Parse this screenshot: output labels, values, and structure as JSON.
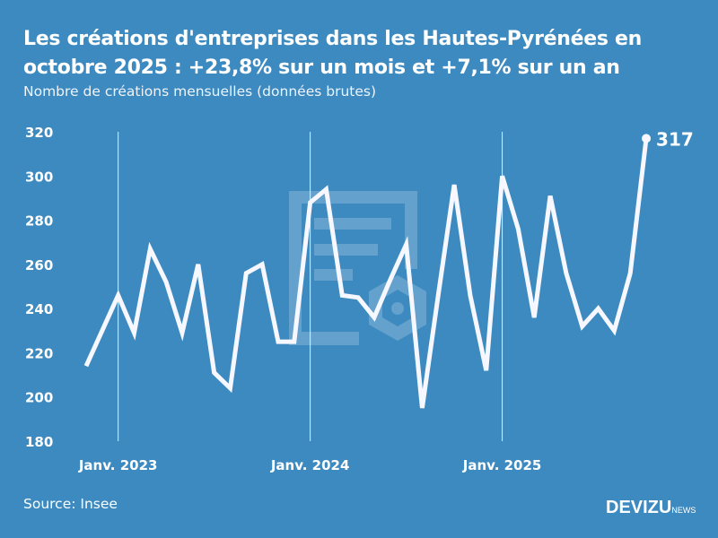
{
  "title_line1": "Les créations d'entreprises dans les Hautes-Pyrénées en",
  "title_line2": "octobre 2025 : +23,8% sur un mois et +7,1% sur un an",
  "subtitle": "Nombre de créations mensuelles (données brutes)",
  "source": "Source: Insee",
  "logo": {
    "main": "DEVIZU",
    "suffix": "NEWS"
  },
  "colors": {
    "background": "#3d8ac0",
    "line": "#f7f8ff"
  },
  "chart_data": {
    "type": "line",
    "title": "Les créations d'entreprises dans les Hautes-Pyrénées en octobre 2025 : +23,8% sur un mois et +7,1% sur un an",
    "ylabel": "",
    "xlabel": "",
    "ylim": [
      180,
      320
    ],
    "yticks": [
      180,
      200,
      220,
      240,
      260,
      280,
      300,
      320
    ],
    "x_tick_labels": [
      {
        "date": "2023-01",
        "label": "Janv. 2023"
      },
      {
        "date": "2024-01",
        "label": "Janv. 2024"
      },
      {
        "date": "2025-01",
        "label": "Janv. 2025"
      }
    ],
    "grid": "vertical lines at January",
    "x": [
      "2022-11",
      "2022-12",
      "2023-01",
      "2023-02",
      "2023-03",
      "2023-04",
      "2023-05",
      "2023-06",
      "2023-07",
      "2023-08",
      "2023-09",
      "2023-10",
      "2023-11",
      "2023-12",
      "2024-01",
      "2024-02",
      "2024-03",
      "2024-04",
      "2024-05",
      "2024-06",
      "2024-07",
      "2024-08",
      "2024-09",
      "2024-10",
      "2024-11",
      "2024-12",
      "2025-01",
      "2025-02",
      "2025-03",
      "2025-04",
      "2025-05",
      "2025-06",
      "2025-07",
      "2025-08",
      "2025-09",
      "2025-10"
    ],
    "values": [
      214,
      230,
      246,
      229,
      267,
      252,
      229,
      260,
      211,
      204,
      256,
      260,
      225,
      225,
      288,
      294,
      246,
      245,
      236,
      253,
      269,
      195,
      246,
      296,
      246,
      212,
      300,
      276,
      236,
      291,
      256,
      232,
      240,
      230,
      256,
      317
    ],
    "last_label": "317"
  }
}
